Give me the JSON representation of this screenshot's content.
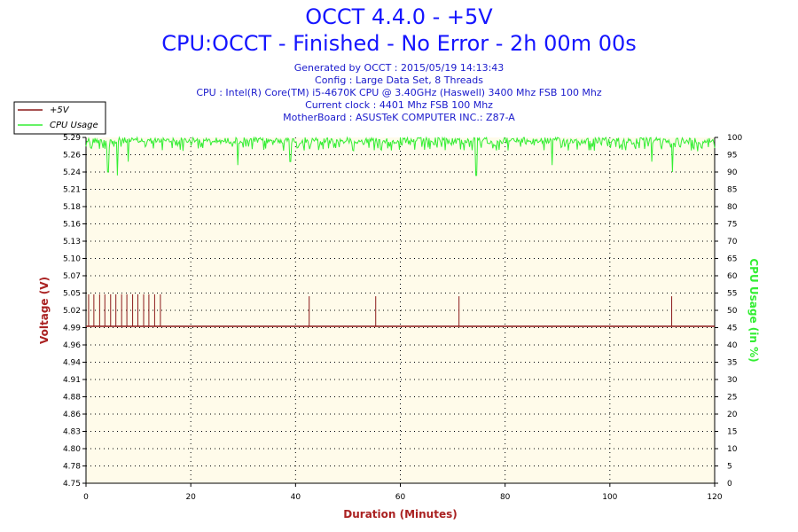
{
  "chart_data": {
    "type": "line",
    "title": "OCCT 4.4.0 - +5V",
    "subtitle": "CPU:OCCT - Finished - No Error - 2h 00m 00s",
    "info_lines": [
      "Generated by OCCT : 2015/05/19 14:13:43",
      "Config : Large Data Set, 8 Threads",
      "CPU : Intel(R) Core(TM) i5-4670K CPU @ 3.40GHz (Haswell) 3400 Mhz FSB 100 Mhz",
      "Current clock : 4401 Mhz FSB 100 Mhz",
      "MotherBoard : ASUSTeK COMPUTER INC.: Z87-A"
    ],
    "xlabel": "Duration (Minutes)",
    "ylabel": "Voltage (V)",
    "y2label": "CPU Usage (in %)",
    "xlim": [
      0,
      120
    ],
    "ylim": [
      4.75,
      5.29
    ],
    "y2lim": [
      0,
      100
    ],
    "x_ticks": [
      "0",
      "20",
      "40",
      "60",
      "80",
      "100",
      "120"
    ],
    "y_ticks": [
      "4.75",
      "4.78",
      "4.80",
      "4.83",
      "4.86",
      "4.88",
      "4.91",
      "4.94",
      "4.96",
      "4.99",
      "5.02",
      "5.05",
      "5.07",
      "5.10",
      "5.13",
      "5.16",
      "5.18",
      "5.21",
      "5.24",
      "5.26",
      "5.29"
    ],
    "y2_ticks": [
      "0",
      "5",
      "10",
      "15",
      "20",
      "25",
      "30",
      "35",
      "40",
      "45",
      "50",
      "55",
      "60",
      "65",
      "70",
      "75",
      "80",
      "85",
      "90",
      "95",
      "100"
    ],
    "grid": true,
    "legend_position": "top-left",
    "series": [
      {
        "name": "+5V",
        "color": "#8b1a1a",
        "axis": "left",
        "baseline": 4.995,
        "spikes": [
          {
            "x": 0.5,
            "y": 5.045
          },
          {
            "x": 1.5,
            "y": 5.045
          },
          {
            "x": 2.6,
            "y": 5.045
          },
          {
            "x": 3.6,
            "y": 5.045
          },
          {
            "x": 4.7,
            "y": 5.045
          },
          {
            "x": 5.7,
            "y": 5.045
          },
          {
            "x": 6.8,
            "y": 5.045
          },
          {
            "x": 7.8,
            "y": 5.045
          },
          {
            "x": 8.9,
            "y": 5.045
          },
          {
            "x": 9.9,
            "y": 5.045
          },
          {
            "x": 11.0,
            "y": 5.045
          },
          {
            "x": 12.0,
            "y": 5.045
          },
          {
            "x": 13.1,
            "y": 5.045
          },
          {
            "x": 14.2,
            "y": 5.045
          },
          {
            "x": 42.6,
            "y": 5.042
          },
          {
            "x": 55.3,
            "y": 5.042
          },
          {
            "x": 71.2,
            "y": 5.042
          },
          {
            "x": 111.8,
            "y": 5.042
          }
        ]
      },
      {
        "name": "CPU Usage",
        "color": "#33ee33",
        "axis": "right",
        "typical_range": [
          96,
          100
        ],
        "dips": [
          {
            "x": 4.2,
            "y": 90
          },
          {
            "x": 6.0,
            "y": 89
          },
          {
            "x": 8.0,
            "y": 93
          },
          {
            "x": 29.0,
            "y": 92
          },
          {
            "x": 39.0,
            "y": 93
          },
          {
            "x": 74.5,
            "y": 89
          },
          {
            "x": 89.0,
            "y": 92
          },
          {
            "x": 108.0,
            "y": 93
          },
          {
            "x": 112.0,
            "y": 90
          }
        ]
      }
    ]
  }
}
